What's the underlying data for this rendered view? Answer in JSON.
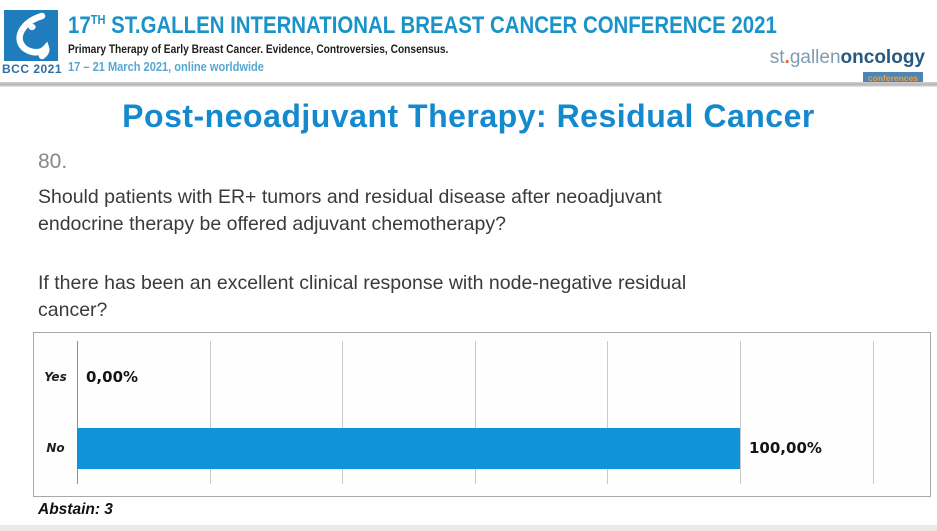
{
  "header": {
    "bcc_badge": "BCC 2021",
    "conference_title": {
      "num": "17",
      "sup": "TH",
      "rest": " ST.GALLEN INTERNATIONAL BREAST CANCER CONFERENCE 2021"
    },
    "subtitle": "Primary Therapy of Early Breast Cancer. Evidence, Controversies, Consensus.",
    "date_line": "17 – 21 March 2021, online worldwide",
    "brand": {
      "prefix": "st",
      "dot": ".",
      "middle": "gallen",
      "suffix": "oncology",
      "badge": "conferences"
    }
  },
  "slide": {
    "title": "Post-neoadjuvant Therapy: Residual Cancer",
    "question_number": "80.",
    "question": "Should patients with ER+ tumors and residual disease after neoadjuvant endocrine therapy be offered adjuvant chemotherapy?",
    "question_lines": [
      "Should patients with ER+ tumors and residual disease after neoadjuvant",
      "endocrine therapy be offered adjuvant chemotherapy?"
    ],
    "condition": "If there has been an excellent clinical response with node-negative residual cancer?",
    "condition_lines": [
      "If there has been an excellent clinical response with node-negative residual",
      "cancer?"
    ],
    "abstain_label": "Abstain: 3"
  },
  "chart_data": {
    "type": "bar",
    "orientation": "horizontal",
    "title": "",
    "categories": [
      "Yes",
      "No"
    ],
    "values": [
      0,
      100
    ],
    "value_labels": [
      "0,00%",
      "100,00%"
    ],
    "abstain": 3,
    "xlim": [
      0,
      129
    ],
    "gridlines": [
      0,
      20,
      40,
      60,
      80,
      100,
      120
    ],
    "grid": true,
    "legend": "none",
    "bar_color": "#0f94da"
  },
  "colors": {
    "header_title": "#1a93c9",
    "date_text": "#57a7d3",
    "slide_title": "#1489ce",
    "question_number": "#878787",
    "body_text": "#3a3a3a",
    "bar": "#0f94da"
  }
}
